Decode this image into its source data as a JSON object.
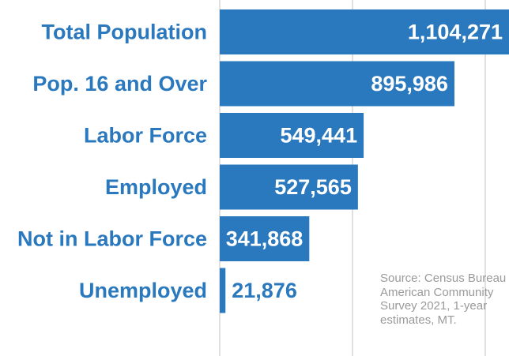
{
  "chart_data": {
    "type": "bar",
    "orientation": "horizontal",
    "categories": [
      "Total Population",
      "Pop. 16 and Over",
      "Labor Force",
      "Employed",
      "Not in Labor Force",
      "Unemployed"
    ],
    "values": [
      1104271,
      895986,
      549441,
      527565,
      341868,
      21876
    ],
    "value_labels": [
      "1,104,271",
      "895,986",
      "549,441",
      "527,565",
      "341,868",
      "21,876"
    ],
    "xlim": [
      0,
      1104271
    ],
    "grid": true,
    "title": "",
    "xlabel": "",
    "ylabel": ""
  },
  "source_note": "Source: Census Bureau American Community Survey 2021, 1-year estimates, MT.",
  "colors": {
    "bar": "#2a78bd",
    "label": "#2a78bd",
    "grid": "#d6d6d6",
    "source": "#9a9a9a"
  }
}
